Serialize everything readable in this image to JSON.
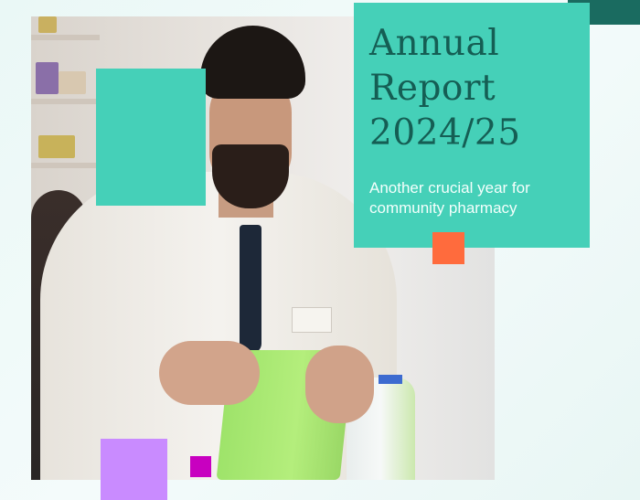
{
  "cover": {
    "title_lines": [
      "Annual",
      "Report",
      "2024/25"
    ],
    "subtitle_lines": [
      "Another crucial year for",
      "community pharmacy"
    ]
  },
  "colors": {
    "title_box": "#45d0b8",
    "title_text": "#155e54",
    "dark_teal_accent": "#1a6b60",
    "orange_accent": "#ff6b3d",
    "lilac_accent": "#c98bff",
    "magenta_accent": "#c800c0"
  },
  "photo": {
    "subject": "pharmacist holding green basket"
  }
}
